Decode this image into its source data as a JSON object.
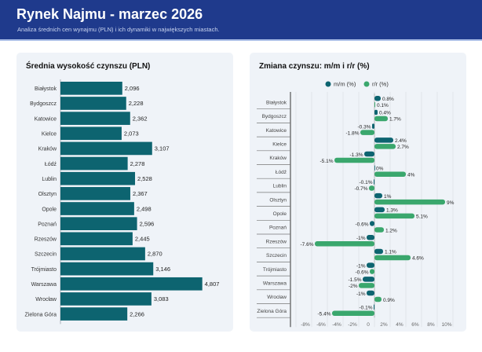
{
  "header": {
    "title": "Rynek Najmu - marzec 2026",
    "subtitle": "Analiza średnich cen wynajmu (PLN) i ich dynamiki w największych miastach."
  },
  "colors": {
    "header": "#1f3a8c",
    "rent_bar": "#0d6470",
    "mm": "#0d6470",
    "rr": "#3aa76d"
  },
  "chart_data": [
    {
      "type": "bar",
      "orientation": "horizontal",
      "title": "Średnia wysokość czynszu (PLN)",
      "categories": [
        "Białystok",
        "Bydgoszcz",
        "Katowice",
        "Kielce",
        "Kraków",
        "Łódź",
        "Lublin",
        "Olsztyn",
        "Opole",
        "Poznań",
        "Rzeszów",
        "Szczecin",
        "Trójmiasto",
        "Warszawa",
        "Wrocław",
        "Zielona Góra"
      ],
      "values": [
        2096,
        2228,
        2362,
        2073,
        3107,
        2278,
        2528,
        2367,
        2498,
        2596,
        2445,
        2870,
        3146,
        4807,
        3083,
        2266
      ],
      "value_labels": [
        "2,096",
        "2,228",
        "2,362",
        "2,073",
        "3,107",
        "2,278",
        "2,528",
        "2,367",
        "2,498",
        "2,596",
        "2,445",
        "2,870",
        "3,146",
        "4,807",
        "3,083",
        "2,266"
      ],
      "xlim": [
        0,
        5800
      ],
      "grid": false
    },
    {
      "type": "bar",
      "orientation": "horizontal",
      "title": "Zmiana czynszu: m/m i r/r (%)",
      "categories": [
        "Białystok",
        "Bydgoszcz",
        "Katowice",
        "Kielce",
        "Kraków",
        "Łódź",
        "Lublin",
        "Olsztyn",
        "Opole",
        "Poznań",
        "Rzeszów",
        "Szczecin",
        "Trójmiasto",
        "Warszawa",
        "Wrocław",
        "Zielona Góra"
      ],
      "series": [
        {
          "name": "m/m (%)",
          "values": [
            0.8,
            0.4,
            -0.3,
            2.4,
            -1.3,
            0,
            -0.1,
            1,
            1.3,
            -0.6,
            -1,
            1.1,
            -1,
            -1.5,
            -1,
            -0.1
          ]
        },
        {
          "name": "r/r (%)",
          "values": [
            0.1,
            1.7,
            -1.8,
            2.7,
            -5.1,
            4,
            -0.7,
            9,
            5.1,
            1.2,
            -7.6,
            4.6,
            -0.6,
            -2,
            0.9,
            -5.4
          ]
        }
      ],
      "xlim": [
        -10,
        10
      ],
      "xticks": [
        "-8%",
        "-6%",
        "-4%",
        "-2%",
        "0",
        "2%",
        "4%",
        "6%",
        "8%",
        "10%"
      ],
      "xtick_values": [
        -8,
        -6,
        -4,
        -2,
        0,
        2,
        4,
        6,
        8,
        10
      ],
      "legend": "top",
      "grid": true
    }
  ]
}
